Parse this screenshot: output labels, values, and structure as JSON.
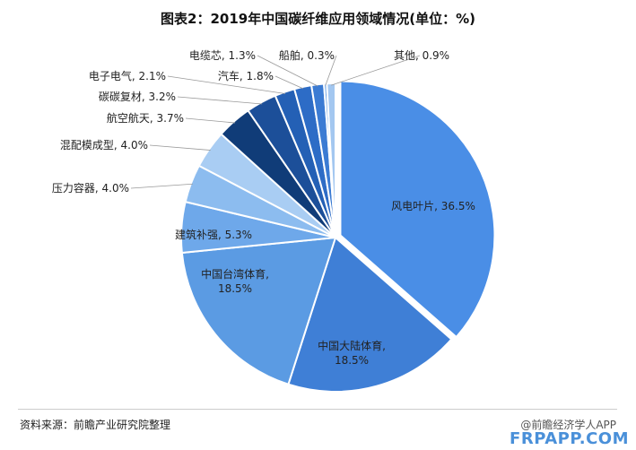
{
  "title": "图表2：2019年中国碳纤维应用领域情况(单位：%)",
  "source": "资料来源：前瞻产业研究院整理",
  "logo": "@前瞻经济学人APP",
  "corner_mark": "FRPAPP.COM",
  "chart_data": {
    "type": "pie",
    "title": "图表2：2019年中国碳纤维应用领域情况(单位：%)",
    "unit": "%",
    "slices": [
      {
        "name": "风电叶片",
        "value": 36.5,
        "label": "风电叶片, 36.5%",
        "color": "#4a8ee6"
      },
      {
        "name": "中国大陆体育",
        "value": 18.5,
        "label": "中国大陆体育, 18.5%",
        "color": "#3f7fd6"
      },
      {
        "name": "中国台湾体育",
        "value": 18.5,
        "label": "中国台湾体育, 18.5%",
        "color": "#5b9be3"
      },
      {
        "name": "建筑补强",
        "value": 5.3,
        "label": "建筑补强, 5.3%",
        "color": "#6ea8ea"
      },
      {
        "name": "压力容器",
        "value": 4.0,
        "label": "压力容器, 4.0%",
        "color": "#8cbcef"
      },
      {
        "name": "混配模成型",
        "value": 4.0,
        "label": "混配模成型, 4.0%",
        "color": "#a9cdf3"
      },
      {
        "name": "航空航天",
        "value": 3.7,
        "label": "航空航天, 3.7%",
        "color": "#103c78"
      },
      {
        "name": "碳碳复材",
        "value": 3.2,
        "label": "碳碳复材, 3.2%",
        "color": "#1c4f99"
      },
      {
        "name": "电子电气",
        "value": 2.1,
        "label": "电子电气, 2.1%",
        "color": "#2460b5"
      },
      {
        "name": "汽车",
        "value": 1.8,
        "label": "汽车, 1.8%",
        "color": "#2d6cc6"
      },
      {
        "name": "电缆芯",
        "value": 1.3,
        "label": "电缆芯, 1.3%",
        "color": "#3b7bd3"
      },
      {
        "name": "船舶",
        "value": 0.3,
        "label": "船舶, 0.3%",
        "color": "#6fa5e6"
      },
      {
        "name": "其他",
        "value": 0.9,
        "label": "其他, 0.9%",
        "color": "#a3c7f0"
      }
    ]
  }
}
